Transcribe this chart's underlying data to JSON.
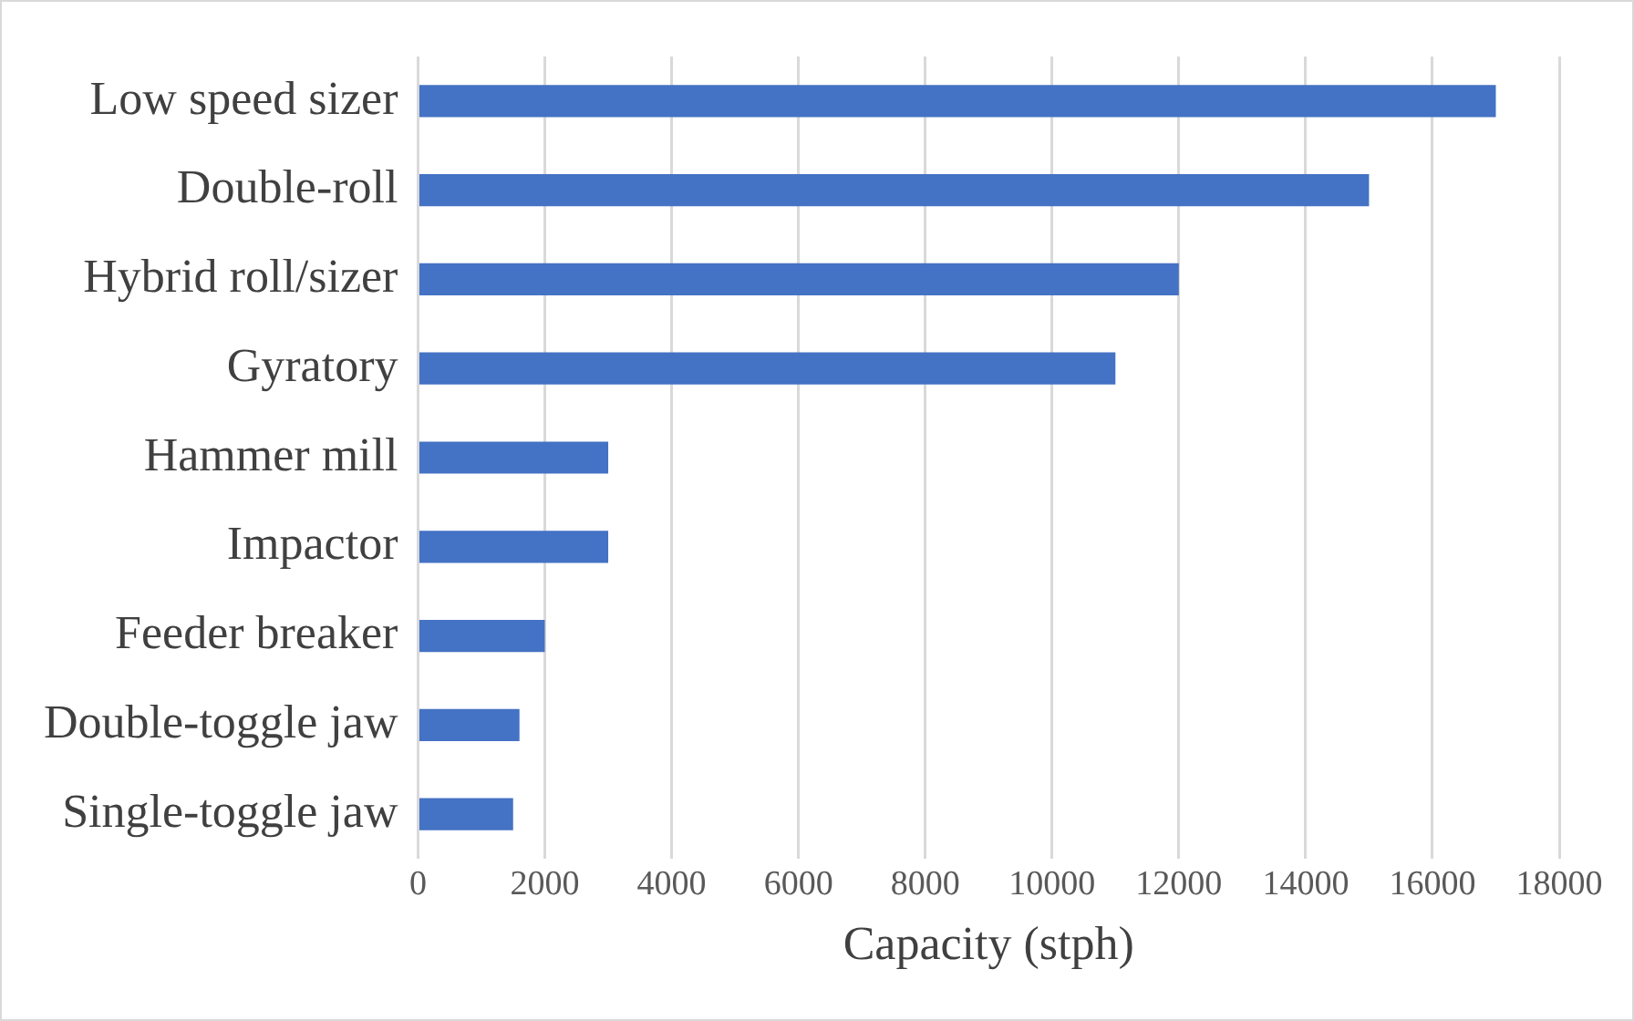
{
  "chart_data": {
    "type": "bar",
    "orientation": "horizontal",
    "xlabel": "Capacity (stph)",
    "categories": [
      "Low speed sizer",
      "Double-roll",
      "Hybrid roll/sizer",
      "Gyratory",
      "Hammer mill",
      "Impactor",
      "Feeder breaker",
      "Double-toggle jaw",
      "Single-toggle jaw"
    ],
    "values": [
      17000,
      15000,
      12000,
      11000,
      3000,
      3000,
      2000,
      1600,
      1500
    ],
    "color": "#4472c4",
    "xlim": [
      0,
      18000
    ],
    "xticks": [
      0,
      2000,
      4000,
      6000,
      8000,
      10000,
      12000,
      14000,
      16000,
      18000
    ],
    "grid": "x",
    "legend": false
  }
}
